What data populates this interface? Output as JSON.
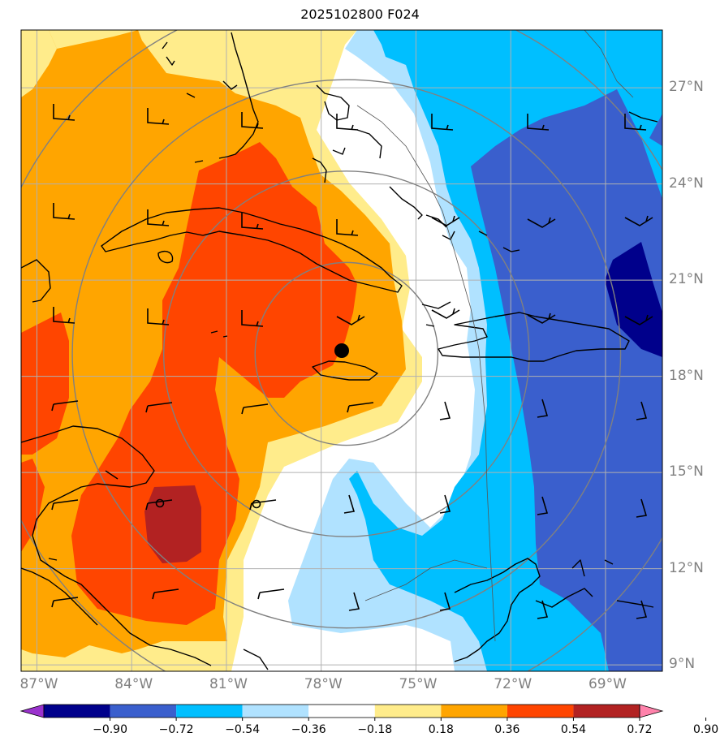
{
  "title": "2025102800 F024",
  "extent": {
    "lon_min": -87.5,
    "lon_max": -67.2,
    "lat_min": 8.8,
    "lat_max": 28.8
  },
  "lat_labels": [
    {
      "lat": 27,
      "text": "27°N"
    },
    {
      "lat": 24,
      "text": "24°N"
    },
    {
      "lat": 21,
      "text": "21°N"
    },
    {
      "lat": 18,
      "text": "18°N"
    },
    {
      "lat": 15,
      "text": "15°N"
    },
    {
      "lat": 12,
      "text": "12°N"
    },
    {
      "lat": 9,
      "text": "9°N"
    }
  ],
  "lon_labels": [
    {
      "lon": -87,
      "text": "87°W"
    },
    {
      "lon": -84,
      "text": "84°W"
    },
    {
      "lon": -81,
      "text": "81°W"
    },
    {
      "lon": -78,
      "text": "78°W"
    },
    {
      "lon": -75,
      "text": "75°W"
    },
    {
      "lon": -72,
      "text": "72°W"
    },
    {
      "lon": -69,
      "text": "69°W"
    }
  ],
  "colorbar": {
    "levels": [
      -0.9,
      -0.72,
      -0.54,
      -0.36,
      -0.18,
      0.18,
      0.36,
      0.54,
      0.72,
      0.9
    ],
    "labels": [
      "−0.90",
      "−0.72",
      "−0.54",
      "−0.36",
      "−0.18",
      "0.18",
      "0.36",
      "0.54",
      "0.72",
      "0.90"
    ],
    "colors": [
      "#9a32cd",
      "#00008b",
      "#3a5fcd",
      "#00bfff",
      "#b0e2ff",
      "#ffffff",
      "#ffec8b",
      "#ffa500",
      "#ff4500",
      "#b22222",
      "#ff82ab"
    ]
  },
  "colors": {
    "grid": "#b0b0b0",
    "ring": "#808080",
    "coast": "#000000",
    "land": "#ffffff"
  },
  "storm_center": {
    "lat": 18.7,
    "lon": -77.2
  },
  "range_rings_deg": [
    3,
    6,
    9,
    12
  ]
}
